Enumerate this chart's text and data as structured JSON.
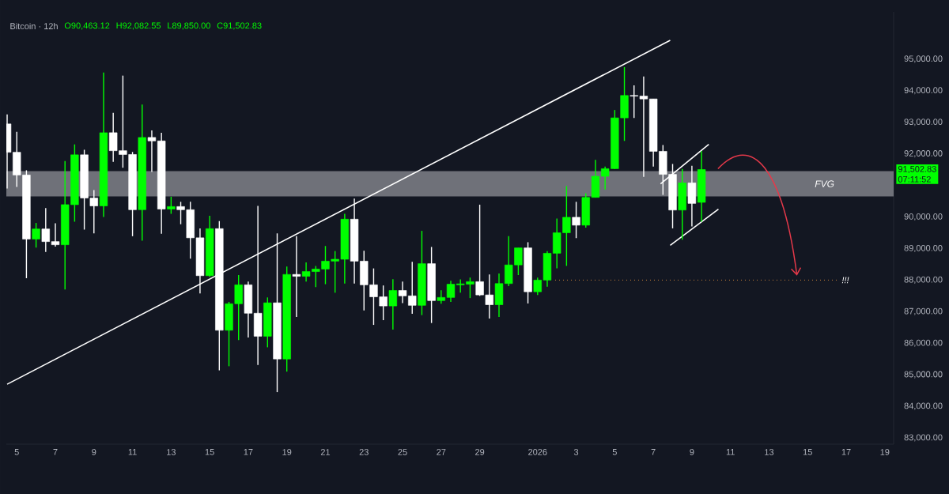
{
  "chart_data": {
    "type": "candlestick",
    "title": "Bitcoin · 12h",
    "annotations": [
      "O90,463.12",
      "H92,082.55",
      "L89,850.00",
      "C91,502.83",
      "91,502.83",
      "07:11:52"
    ],
    "x": [
      "2025-12-04T12:00",
      "2025-12-05T00:00",
      "2025-12-05T12:00",
      "2025-12-06T00:00",
      "2025-12-06T12:00",
      "2025-12-07T00:00",
      "2025-12-07T12:00",
      "2025-12-08T00:00",
      "2025-12-08T12:00",
      "2025-12-09T00:00",
      "2025-12-09T12:00",
      "2025-12-10T00:00",
      "2025-12-10T12:00",
      "2025-12-11T00:00",
      "2025-12-11T12:00",
      "2025-12-12T00:00",
      "2025-12-12T12:00",
      "2025-12-13T00:00",
      "2025-12-13T12:00",
      "2025-12-14T00:00",
      "2025-12-14T12:00",
      "2025-12-15T00:00",
      "2025-12-15T12:00",
      "2025-12-16T00:00",
      "2025-12-16T12:00",
      "2025-12-17T00:00",
      "2025-12-17T12:00",
      "2025-12-18T00:00",
      "2025-12-18T12:00",
      "2025-12-19T00:00",
      "2025-12-19T12:00",
      "2025-12-20T00:00",
      "2025-12-20T12:00",
      "2025-12-21T00:00",
      "2025-12-21T12:00",
      "2025-12-22T00:00",
      "2025-12-22T12:00",
      "2025-12-23T00:00",
      "2025-12-23T12:00",
      "2025-12-24T00:00",
      "2025-12-24T12:00",
      "2025-12-25T00:00",
      "2025-12-25T12:00",
      "2025-12-26T00:00",
      "2025-12-26T12:00",
      "2025-12-27T00:00",
      "2025-12-27T12:00",
      "2025-12-28T00:00",
      "2025-12-28T12:00",
      "2025-12-29T00:00",
      "2025-12-29T12:00",
      "2025-12-30T00:00",
      "2025-12-30T12:00",
      "2025-12-31T00:00",
      "2025-12-31T12:00",
      "2026-01-01T00:00",
      "2026-01-01T12:00",
      "2026-01-02T00:00",
      "2026-01-02T12:00",
      "2026-01-03T00:00",
      "2026-01-03T12:00",
      "2026-01-04T00:00",
      "2026-01-04T12:00",
      "2026-01-05T00:00",
      "2026-01-05T12:00",
      "2026-01-06T00:00",
      "2026-01-06T12:00",
      "2026-01-07T00:00",
      "2026-01-07T12:00",
      "2026-01-08T00:00",
      "2026-01-08T12:00",
      "2026-01-09T00:00",
      "2026-01-09T12:00"
    ],
    "ohlc": [
      [
        92950,
        93250,
        90900,
        92050
      ],
      [
        92050,
        92700,
        90950,
        91330
      ],
      [
        91330,
        91480,
        88060,
        89300
      ],
      [
        89300,
        89810,
        89030,
        89620
      ],
      [
        89620,
        90280,
        88890,
        89220
      ],
      [
        89220,
        89800,
        89060,
        89120
      ],
      [
        89120,
        91770,
        87700,
        90390
      ],
      [
        90390,
        92300,
        89850,
        91970
      ],
      [
        91970,
        92130,
        89600,
        90600
      ],
      [
        90600,
        90850,
        89480,
        90350
      ],
      [
        90350,
        94580,
        90000,
        92670
      ],
      [
        92670,
        93300,
        91750,
        92100
      ],
      [
        92100,
        94480,
        91560,
        91980
      ],
      [
        91980,
        92060,
        89390,
        90230
      ],
      [
        90230,
        93560,
        89250,
        92520
      ],
      [
        92520,
        92740,
        91430,
        92410
      ],
      [
        92410,
        92670,
        89470,
        90250
      ],
      [
        90250,
        90640,
        90100,
        90330
      ],
      [
        90330,
        90480,
        89770,
        90230
      ],
      [
        90230,
        90480,
        88680,
        89340
      ],
      [
        89340,
        89640,
        87580,
        88140
      ],
      [
        88140,
        90040,
        88100,
        89630
      ],
      [
        89630,
        89870,
        85140,
        86410
      ],
      [
        86410,
        87310,
        85270,
        87250
      ],
      [
        87250,
        88160,
        86100,
        87850
      ],
      [
        87850,
        87950,
        86180,
        86950
      ],
      [
        86950,
        90350,
        85310,
        86220
      ],
      [
        86220,
        87450,
        85870,
        87280
      ],
      [
        87280,
        89480,
        84450,
        85500
      ],
      [
        85500,
        88430,
        85100,
        88180
      ],
      [
        88180,
        89390,
        86830,
        88120
      ],
      [
        88120,
        88560,
        87950,
        88270
      ],
      [
        88270,
        88450,
        87780,
        88350
      ],
      [
        88350,
        89080,
        87870,
        88600
      ],
      [
        88600,
        88920,
        87600,
        88660
      ],
      [
        88660,
        90100,
        87890,
        89930
      ],
      [
        89930,
        90580,
        87890,
        88600
      ],
      [
        88600,
        88930,
        87040,
        87850
      ],
      [
        87850,
        88370,
        86580,
        87470
      ],
      [
        87470,
        87830,
        86730,
        87180
      ],
      [
        87180,
        88030,
        86430,
        87670
      ],
      [
        87670,
        87950,
        87270,
        87500
      ],
      [
        87500,
        88580,
        86930,
        87200
      ],
      [
        87200,
        89560,
        86890,
        88520
      ],
      [
        88520,
        89050,
        86640,
        87350
      ],
      [
        87350,
        87680,
        87250,
        87450
      ],
      [
        87450,
        87980,
        87310,
        87870
      ],
      [
        87850,
        88020,
        87600,
        87880
      ],
      [
        87870,
        88080,
        87430,
        87950
      ],
      [
        87950,
        90390,
        87500,
        87530
      ],
      [
        87530,
        88180,
        86780,
        87220
      ],
      [
        87220,
        88210,
        86830,
        87890
      ],
      [
        87890,
        89390,
        87810,
        88480
      ],
      [
        88480,
        89020,
        88160,
        89020
      ],
      [
        89020,
        89200,
        87260,
        87630
      ],
      [
        87630,
        88080,
        87530,
        88000
      ],
      [
        88000,
        88920,
        87790,
        88850
      ],
      [
        88850,
        89950,
        88370,
        89500
      ],
      [
        89500,
        90980,
        88450,
        89990
      ],
      [
        89990,
        90480,
        89330,
        89740
      ],
      [
        89740,
        90750,
        89660,
        90620
      ],
      [
        90620,
        91810,
        90620,
        91290
      ],
      [
        91290,
        91600,
        90870,
        91530
      ],
      [
        91530,
        93390,
        91520,
        93140
      ],
      [
        93140,
        94750,
        92410,
        93850
      ],
      [
        93850,
        94170,
        93140,
        93830
      ],
      [
        93830,
        94450,
        91270,
        93740
      ],
      [
        93740,
        93740,
        91600,
        92080
      ],
      [
        92080,
        92280,
        90700,
        91350
      ],
      [
        91350,
        91680,
        89640,
        90220
      ],
      [
        90220,
        91520,
        89280,
        91080
      ],
      [
        91080,
        91620,
        89700,
        90430
      ],
      [
        90463.12,
        92082.55,
        89850.0,
        91502.83
      ]
    ],
    "colors": [
      "#ffffff",
      "#ffffff",
      "#ffffff",
      "#00ff00",
      "#ffffff",
      "#ffffff",
      "#00ff00",
      "#00ff00",
      "#ffffff",
      "#ffffff",
      "#00ff00",
      "#ffffff",
      "#ffffff",
      "#ffffff",
      "#00ff00",
      "#ffffff",
      "#ffffff",
      "#00ff00",
      "#ffffff",
      "#ffffff",
      "#ffffff",
      "#00ff00",
      "#ffffff",
      "#00ff00",
      "#00ff00",
      "#ffffff",
      "#ffffff",
      "#00ff00",
      "#ffffff",
      "#00ff00",
      "#ffffff",
      "#00ff00",
      "#00ff00",
      "#00ff00",
      "#00ff00",
      "#00ff00",
      "#ffffff",
      "#ffffff",
      "#ffffff",
      "#ffffff",
      "#00ff00",
      "#ffffff",
      "#ffffff",
      "#00ff00",
      "#ffffff",
      "#00ff00",
      "#00ff00",
      "#00ff00",
      "#00ff00",
      "#ffffff",
      "#ffffff",
      "#00ff00",
      "#00ff00",
      "#00ff00",
      "#ffffff",
      "#00ff00",
      "#00ff00",
      "#00ff00",
      "#00ff00",
      "#ffffff",
      "#00ff00",
      "#00ff00",
      "#00ff00",
      "#00ff00",
      "#00ff00",
      "#ffffff",
      "#ffffff",
      "#ffffff",
      "#ffffff",
      "#ffffff",
      "#00ff00",
      "#ffffff",
      "#00ff00"
    ],
    "series": [
      {
        "type": "line",
        "color": "#ffffff",
        "x": [
          "2025-12-04T12:00",
          "2026-01-07T21:00"
        ],
        "values": [
          84700,
          95600
        ]
      },
      {
        "type": "line",
        "color": "#ffffff",
        "x": [
          "2026-01-07T09:00",
          "2026-01-09T21:00"
        ],
        "values": [
          91050,
          92300
        ]
      },
      {
        "type": "line",
        "color": "#ffffff",
        "x": [
          "2026-01-07T21:00",
          "2026-01-10T09:00"
        ],
        "values": [
          89100,
          90250
        ]
      }
    ],
    "bands": [
      {
        "axis": "y",
        "from": 90650,
        "to": 91450,
        "label": "FVG",
        "color": "#6f7179"
      }
    ],
    "ref_lines": [
      {
        "axis": "y",
        "value": 88000,
        "label": "!!!",
        "color": "#c47f3b",
        "line_style": "dotted"
      }
    ],
    "xlim": [
      "2025-12-04T11:00",
      "2026-01-19T11:00"
    ],
    "ylim": [
      82800,
      96500
    ],
    "xticks": [
      {
        "value": "2025-12-05",
        "label": "5"
      },
      {
        "value": "2025-12-07",
        "label": "7"
      },
      {
        "value": "2025-12-09",
        "label": "9"
      },
      {
        "value": "2025-12-11",
        "label": "11"
      },
      {
        "value": "2025-12-13",
        "label": "13"
      },
      {
        "value": "2025-12-15",
        "label": "15"
      },
      {
        "value": "2025-12-17",
        "label": "17"
      },
      {
        "value": "2025-12-19",
        "label": "19"
      },
      {
        "value": "2025-12-21",
        "label": "21"
      },
      {
        "value": "2025-12-23",
        "label": "23"
      },
      {
        "value": "2025-12-25",
        "label": "25"
      },
      {
        "value": "2025-12-27",
        "label": "27"
      },
      {
        "value": "2025-12-29",
        "label": "29"
      },
      {
        "value": "2026-01-01",
        "label": "2026"
      },
      {
        "value": "2026-01-03",
        "label": "3"
      },
      {
        "value": "2026-01-05",
        "label": "5"
      },
      {
        "value": "2026-01-07",
        "label": "7"
      },
      {
        "value": "2026-01-09",
        "label": "9"
      },
      {
        "value": "2026-01-11",
        "label": "11"
      },
      {
        "value": "2026-01-13",
        "label": "13"
      },
      {
        "value": "2026-01-15",
        "label": "15"
      },
      {
        "value": "2026-01-17",
        "label": "17"
      },
      {
        "value": "2026-01-19",
        "label": "19"
      }
    ],
    "yticks": [
      {
        "value": 83000,
        "label": "83,000.00"
      },
      {
        "value": 84000,
        "label": "84,000.00"
      },
      {
        "value": 85000,
        "label": "85,000.00"
      },
      {
        "value": 86000,
        "label": "86,000.00"
      },
      {
        "value": 87000,
        "label": "87,000.00"
      },
      {
        "value": 88000,
        "label": "88,000.00"
      },
      {
        "value": 89000,
        "label": "89,000.00"
      },
      {
        "value": 90000,
        "label": "90,000.00"
      },
      {
        "value": 92000,
        "label": "92,000.00"
      },
      {
        "value": 93000,
        "label": "93,000.00"
      },
      {
        "value": 94000,
        "label": "94,000.00"
      },
      {
        "value": 95000,
        "label": "95,000.00"
      }
    ]
  }
}
